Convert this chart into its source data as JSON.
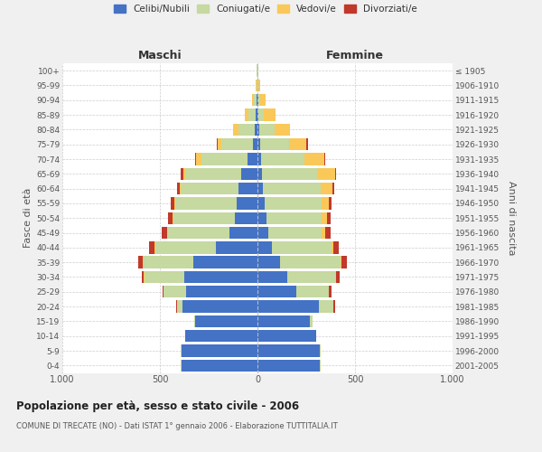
{
  "age_groups": [
    "0-4",
    "5-9",
    "10-14",
    "15-19",
    "20-24",
    "25-29",
    "30-34",
    "35-39",
    "40-44",
    "45-49",
    "50-54",
    "55-59",
    "60-64",
    "65-69",
    "70-74",
    "75-79",
    "80-84",
    "85-89",
    "90-94",
    "95-99",
    "100+"
  ],
  "birth_years": [
    "2001-2005",
    "1996-2000",
    "1991-1995",
    "1986-1990",
    "1981-1985",
    "1976-1980",
    "1971-1975",
    "1966-1970",
    "1961-1965",
    "1956-1960",
    "1951-1955",
    "1946-1950",
    "1941-1945",
    "1936-1940",
    "1931-1935",
    "1926-1930",
    "1921-1925",
    "1916-1920",
    "1911-1915",
    "1906-1910",
    "≤ 1905"
  ],
  "males": {
    "celibe": [
      390,
      390,
      370,
      320,
      385,
      365,
      375,
      330,
      215,
      145,
      115,
      105,
      95,
      85,
      50,
      25,
      15,
      8,
      4,
      2,
      2
    ],
    "coniugato": [
      2,
      2,
      2,
      4,
      28,
      115,
      205,
      255,
      310,
      315,
      315,
      315,
      300,
      285,
      235,
      160,
      80,
      38,
      14,
      4,
      2
    ],
    "vedovo": [
      0,
      0,
      0,
      0,
      1,
      2,
      3,
      3,
      4,
      5,
      5,
      5,
      5,
      8,
      28,
      20,
      28,
      18,
      8,
      3,
      1
    ],
    "divorziato": [
      0,
      0,
      0,
      0,
      2,
      5,
      10,
      25,
      25,
      28,
      25,
      20,
      10,
      15,
      5,
      5,
      2,
      0,
      0,
      0,
      0
    ]
  },
  "females": {
    "nubile": [
      320,
      320,
      300,
      270,
      315,
      200,
      155,
      115,
      75,
      55,
      45,
      38,
      30,
      25,
      18,
      12,
      8,
      5,
      3,
      2,
      2
    ],
    "coniugata": [
      2,
      2,
      3,
      12,
      75,
      165,
      245,
      310,
      305,
      275,
      285,
      290,
      295,
      285,
      225,
      152,
      80,
      28,
      12,
      4,
      2
    ],
    "vedova": [
      0,
      0,
      0,
      0,
      1,
      3,
      5,
      5,
      10,
      15,
      25,
      38,
      58,
      88,
      98,
      88,
      78,
      58,
      28,
      10,
      2
    ],
    "divorziata": [
      0,
      0,
      0,
      2,
      5,
      10,
      15,
      30,
      28,
      30,
      20,
      15,
      10,
      5,
      5,
      5,
      2,
      0,
      0,
      0,
      0
    ]
  },
  "colors": {
    "celibe": "#4472C4",
    "coniugato": "#C5D9A0",
    "vedovo": "#FAC858",
    "divorziato": "#C0392B"
  },
  "xlim": 1000,
  "title": "Popolazione per età, sesso e stato civile - 2006",
  "subtitle": "COMUNE DI TRECATE (NO) - Dati ISTAT 1° gennaio 2006 - Elaborazione TUTTITALIA.IT",
  "ylabel_left": "Fasce di età",
  "ylabel_right": "Anni di nascita",
  "label_maschi": "Maschi",
  "label_femmine": "Femmine",
  "background_color": "#f0f0f0",
  "plot_bg": "#ffffff",
  "legend": [
    "Celibi/Nubili",
    "Coniugati/e",
    "Vedovi/e",
    "Divorziati/e"
  ]
}
